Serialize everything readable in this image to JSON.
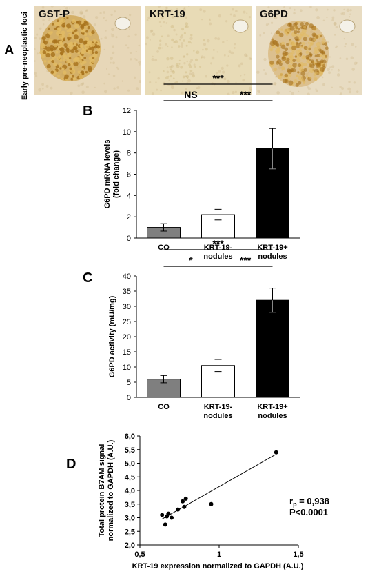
{
  "panel_a": {
    "letter": "A",
    "row_label": "Early pre-neoplastic foci",
    "images": [
      {
        "label": "GST-P",
        "bg": "#e7d7b8",
        "stain": "#c99a3a",
        "intensity": 0.95
      },
      {
        "label": "KRT-19",
        "bg": "#e8dbb6",
        "stain": "#d8c48f",
        "intensity": 0.0
      },
      {
        "label": "G6PD",
        "bg": "#e8dcc2",
        "stain": "#d2a860",
        "intensity": 0.6
      }
    ]
  },
  "chart_data": [
    {
      "panel": "B",
      "type": "bar",
      "ylabel": "G6PD mRNA levels (fold change)",
      "ylabel_lines": [
        "G6PD mRNA levels",
        "(fold change)"
      ],
      "categories": [
        "CO",
        "KRT-19- nodules",
        "KRT-19+ nodules"
      ],
      "category_lines": [
        [
          "CO"
        ],
        [
          "KRT-19-",
          "nodules"
        ],
        [
          "KRT-19+",
          "nodules"
        ]
      ],
      "values": [
        1.0,
        2.2,
        8.4
      ],
      "errors": [
        0.35,
        0.5,
        1.9
      ],
      "colors": [
        "#7f7f7f",
        "#ffffff",
        "#000000"
      ],
      "ylim": [
        0,
        12
      ],
      "yticks": [
        "0",
        "2",
        "4",
        "6",
        "8",
        "10",
        "12"
      ],
      "significance": [
        {
          "from": 0,
          "to": 2,
          "label": "***",
          "level": 2
        },
        {
          "from": 0,
          "to": 1,
          "label": "NS",
          "level": 1
        },
        {
          "from": 1,
          "to": 2,
          "label": "***",
          "level": 1
        }
      ]
    },
    {
      "panel": "C",
      "type": "bar",
      "ylabel": "G6PD activity (mU/mg)",
      "ylabel_lines": [
        "G6PD activity (mU/mg)"
      ],
      "categories": [
        "CO",
        "KRT-19- nodules",
        "KRT-19+ nodules"
      ],
      "category_lines": [
        [
          "CO"
        ],
        [
          "KRT-19-",
          "nodules"
        ],
        [
          "KRT-19+",
          "nodules"
        ]
      ],
      "values": [
        6.0,
        10.5,
        32.0
      ],
      "errors": [
        1.2,
        2.0,
        4.0
      ],
      "colors": [
        "#7f7f7f",
        "#ffffff",
        "#000000"
      ],
      "ylim": [
        0,
        40
      ],
      "yticks": [
        "0",
        "5",
        "10",
        "15",
        "20",
        "25",
        "30",
        "35",
        "40"
      ],
      "significance": [
        {
          "from": 0,
          "to": 2,
          "label": "***",
          "level": 2
        },
        {
          "from": 0,
          "to": 1,
          "label": "*",
          "level": 1
        },
        {
          "from": 1,
          "to": 2,
          "label": "***",
          "level": 1
        }
      ]
    },
    {
      "panel": "D",
      "type": "scatter",
      "xlabel": "KRT-19 expression normalized to GAPDH (A.U.)",
      "ylabel": "Total protein B7AM signal normalized to GAPDH (A.U.)",
      "ylabel_lines": [
        "Total protein B7AM signal",
        "normalized to GAPDH (A.U.)"
      ],
      "xlim": [
        0.5,
        1.5
      ],
      "ylim": [
        2.0,
        6.0
      ],
      "xticks": [
        {
          "v": 0.5,
          "t": "0,5"
        },
        {
          "v": 1.0,
          "t": "1"
        },
        {
          "v": 1.5,
          "t": "1,5"
        }
      ],
      "yticks": [
        {
          "v": 2.0,
          "t": "2,0"
        },
        {
          "v": 2.5,
          "t": "2,5"
        },
        {
          "v": 3.0,
          "t": "3,0"
        },
        {
          "v": 3.5,
          "t": "3,5"
        },
        {
          "v": 4.0,
          "t": "4,0"
        },
        {
          "v": 4.5,
          "t": "4,5"
        },
        {
          "v": 5.0,
          "t": "5,0"
        },
        {
          "v": 5.5,
          "t": "5,5"
        },
        {
          "v": 6.0,
          "t": "6,0"
        }
      ],
      "points": [
        {
          "x": 0.64,
          "y": 3.1
        },
        {
          "x": 0.66,
          "y": 2.75
        },
        {
          "x": 0.67,
          "y": 3.05
        },
        {
          "x": 0.68,
          "y": 3.15
        },
        {
          "x": 0.7,
          "y": 3.0
        },
        {
          "x": 0.74,
          "y": 3.3
        },
        {
          "x": 0.77,
          "y": 3.6
        },
        {
          "x": 0.78,
          "y": 3.4
        },
        {
          "x": 0.79,
          "y": 3.7
        },
        {
          "x": 0.95,
          "y": 3.5
        },
        {
          "x": 1.36,
          "y": 5.4
        }
      ],
      "fit_line": {
        "x0": 0.64,
        "y0": 2.95,
        "x1": 1.35,
        "y1": 5.3
      },
      "stats": {
        "r_main": "r",
        "r_sub": "p",
        "r_value": " = 0,938",
        "p_text": "P<0.0001"
      }
    }
  ]
}
